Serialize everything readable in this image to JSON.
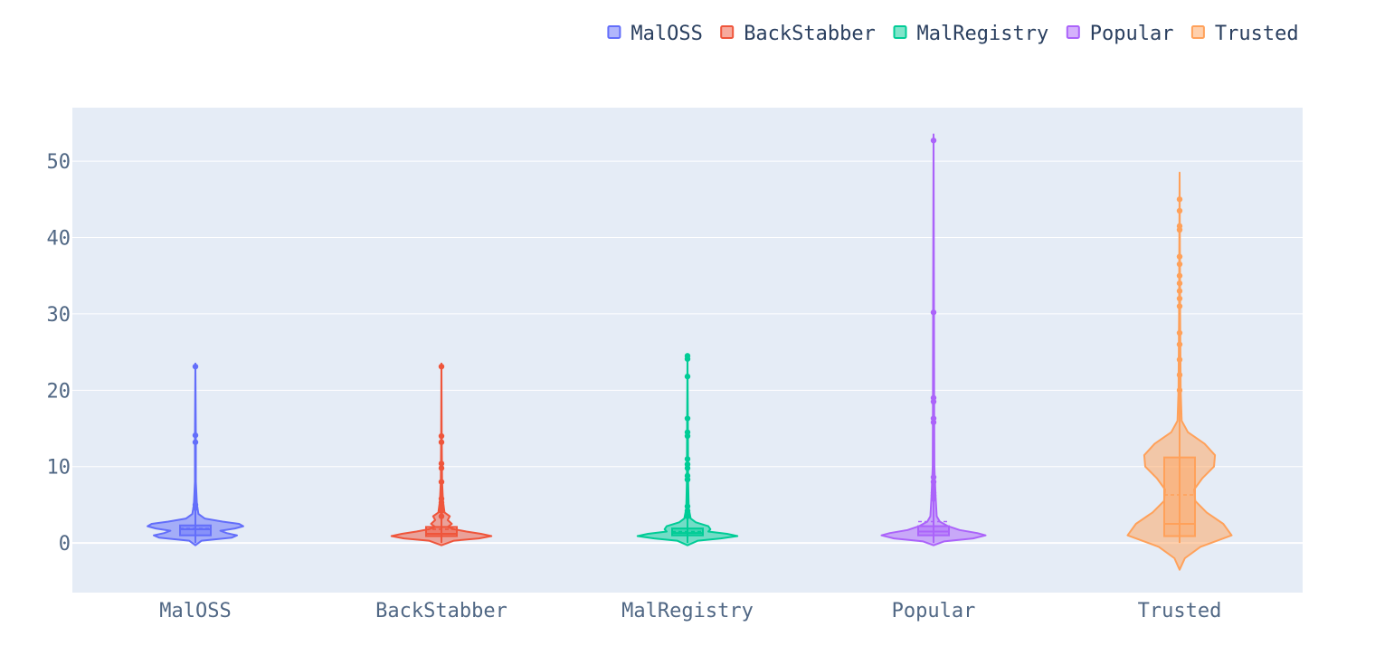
{
  "chart_data": {
    "type": "violin",
    "title": "",
    "xlabel": "",
    "ylabel": "",
    "ylim": [
      -6.5,
      57
    ],
    "y_ticks": [
      0,
      10,
      20,
      30,
      40,
      50
    ],
    "grid": true,
    "legend_position": "top-right",
    "categories": [
      "MalOSS",
      "BackStabber",
      "MalRegistry",
      "Popular",
      "Trusted"
    ],
    "series": [
      {
        "name": "MalOSS",
        "color": "#636efa",
        "box": {
          "q1": 1.0,
          "median": 1.8,
          "q3": 2.3,
          "mean": 1.9
        },
        "range": [
          0,
          23.5
        ],
        "outliers": [
          4.6,
          5.0,
          13.2,
          14.1,
          23.1
        ],
        "density": [
          [
            -0.3,
            0
          ],
          [
            0.3,
            0.06
          ],
          [
            0.7,
            0.35
          ],
          [
            1.0,
            0.4
          ],
          [
            1.3,
            0.3
          ],
          [
            1.6,
            0.24
          ],
          [
            1.9,
            0.38
          ],
          [
            2.2,
            0.46
          ],
          [
            2.5,
            0.42
          ],
          [
            2.8,
            0.26
          ],
          [
            3.2,
            0.09
          ],
          [
            3.8,
            0.03
          ],
          [
            5,
            0.015
          ],
          [
            8,
            0.004
          ],
          [
            14,
            0.004
          ],
          [
            20,
            0.002
          ],
          [
            23.5,
            0.0
          ]
        ]
      },
      {
        "name": "BackStabber",
        "color": "#EF553B",
        "box": {
          "q1": 0.9,
          "median": 1.2,
          "q3": 2.1,
          "mean": 1.8
        },
        "range": [
          0,
          23.5
        ],
        "outliers": [
          3.5,
          4.2,
          4.8,
          5.3,
          5.8,
          8.0,
          9.8,
          10.4,
          13.2,
          14.0,
          23.1
        ],
        "density": [
          [
            -0.3,
            0
          ],
          [
            0.3,
            0.12
          ],
          [
            0.6,
            0.36
          ],
          [
            0.9,
            0.48
          ],
          [
            1.2,
            0.38
          ],
          [
            1.5,
            0.24
          ],
          [
            1.8,
            0.12
          ],
          [
            2.1,
            0.06
          ],
          [
            2.5,
            0.1
          ],
          [
            3.0,
            0.06
          ],
          [
            3.5,
            0.08
          ],
          [
            4.0,
            0.03
          ],
          [
            5.5,
            0.015
          ],
          [
            8,
            0.006
          ],
          [
            14,
            0.003
          ],
          [
            23.5,
            0
          ]
        ]
      },
      {
        "name": "MalRegistry",
        "color": "#00cc96",
        "box": {
          "q1": 1.0,
          "median": 1.3,
          "q3": 1.9,
          "mean": 1.5
        },
        "range": [
          0,
          24.7
        ],
        "outliers": [
          3.5,
          4.2,
          4.8,
          8.3,
          8.8,
          9.8,
          10.3,
          11.0,
          14.0,
          14.5,
          16.3,
          21.8,
          24.1,
          24.5
        ],
        "density": [
          [
            -0.3,
            0
          ],
          [
            0.3,
            0.1
          ],
          [
            0.6,
            0.32
          ],
          [
            0.9,
            0.48
          ],
          [
            1.2,
            0.38
          ],
          [
            1.5,
            0.2
          ],
          [
            1.8,
            0.22
          ],
          [
            2.2,
            0.2
          ],
          [
            2.7,
            0.08
          ],
          [
            3.2,
            0.03
          ],
          [
            4.5,
            0.012
          ],
          [
            8,
            0.006
          ],
          [
            14,
            0.004
          ],
          [
            24.7,
            0
          ]
        ]
      },
      {
        "name": "Popular",
        "color": "#ab63fa",
        "box": {
          "q1": 1.0,
          "median": 1.5,
          "q3": 2.2,
          "mean": 2.8
        },
        "range": [
          0,
          53.5
        ],
        "outliers": [
          5.8,
          6.2,
          6.6,
          8.0,
          8.6,
          15.8,
          16.3,
          18.5,
          19.0,
          30.2,
          52.7
        ],
        "density": [
          [
            -0.3,
            0
          ],
          [
            0.2,
            0.1
          ],
          [
            0.6,
            0.38
          ],
          [
            1.0,
            0.5
          ],
          [
            1.3,
            0.42
          ],
          [
            1.7,
            0.25
          ],
          [
            2.2,
            0.14
          ],
          [
            2.8,
            0.06
          ],
          [
            3.5,
            0.03
          ],
          [
            6,
            0.02
          ],
          [
            10,
            0.008
          ],
          [
            18,
            0.006
          ],
          [
            30,
            0.004
          ],
          [
            53.5,
            0
          ]
        ]
      },
      {
        "name": "Trusted",
        "color": "#FFA15A",
        "box": {
          "q1": 0.9,
          "median": 2.5,
          "q3": 11.2,
          "mean": 6.3
        },
        "range": [
          0,
          48.5
        ],
        "outliers": [
          20,
          22,
          24,
          26,
          27.5,
          31,
          32,
          33,
          34,
          35,
          36.5,
          37.5,
          41,
          41.5,
          43.5,
          45
        ],
        "density": [
          [
            -3.5,
            0
          ],
          [
            -2,
            0.05
          ],
          [
            -0.5,
            0.2
          ],
          [
            1.0,
            0.5
          ],
          [
            2.5,
            0.42
          ],
          [
            4.0,
            0.26
          ],
          [
            5.5,
            0.15
          ],
          [
            7.0,
            0.14
          ],
          [
            8.5,
            0.22
          ],
          [
            10.0,
            0.33
          ],
          [
            11.5,
            0.34
          ],
          [
            13.0,
            0.24
          ],
          [
            14.5,
            0.08
          ],
          [
            16,
            0.02
          ],
          [
            20,
            0.01
          ],
          [
            30,
            0.005
          ],
          [
            40,
            0.003
          ],
          [
            48.5,
            0
          ]
        ]
      }
    ]
  }
}
